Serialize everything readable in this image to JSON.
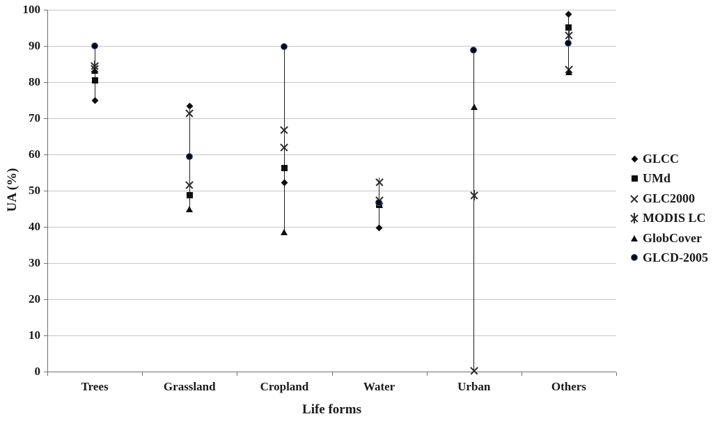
{
  "chart_data": {
    "type": "scatter",
    "title": "",
    "xlabel": "Life forms",
    "ylabel": "UA (%)",
    "ylim": [
      0,
      100
    ],
    "yticks": [
      0,
      10,
      20,
      30,
      40,
      50,
      60,
      70,
      80,
      90,
      100
    ],
    "grid": "horizontal",
    "legend_position": "right",
    "range_lines": true,
    "categories": [
      "Trees",
      "Grassland",
      "Cropland",
      "Water",
      "Urban",
      "Others"
    ],
    "series": [
      {
        "name": "GLCC",
        "marker": "diamond",
        "values": [
          74.9,
          73.4,
          52.2,
          39.8,
          null,
          98.8
        ]
      },
      {
        "name": "UMd",
        "marker": "square",
        "values": [
          80.5,
          48.8,
          56.3,
          46.2,
          null,
          95.1
        ]
      },
      {
        "name": "GLC2000",
        "marker": "x",
        "values": [
          83.8,
          51.6,
          62.0,
          47.4,
          0.3,
          83.5
        ]
      },
      {
        "name": "MODIS LC",
        "marker": "asterisk",
        "values": [
          84.5,
          71.4,
          66.7,
          52.3,
          48.7,
          93.0
        ]
      },
      {
        "name": "GlobCover",
        "marker": "triangle",
        "values": [
          83.1,
          45.0,
          38.6,
          46.1,
          73.1,
          82.7
        ]
      },
      {
        "name": "GLCD-2005",
        "marker": "circle",
        "values": [
          89.9,
          59.3,
          89.8,
          46.6,
          88.7,
          90.6
        ]
      }
    ],
    "colors": {
      "marker": "#0d0d0d",
      "circle_ring": "#3b5c9c",
      "gridline": "#c6c6c6",
      "axis": "#6e6e6e",
      "text": "#1a1a1a"
    }
  }
}
